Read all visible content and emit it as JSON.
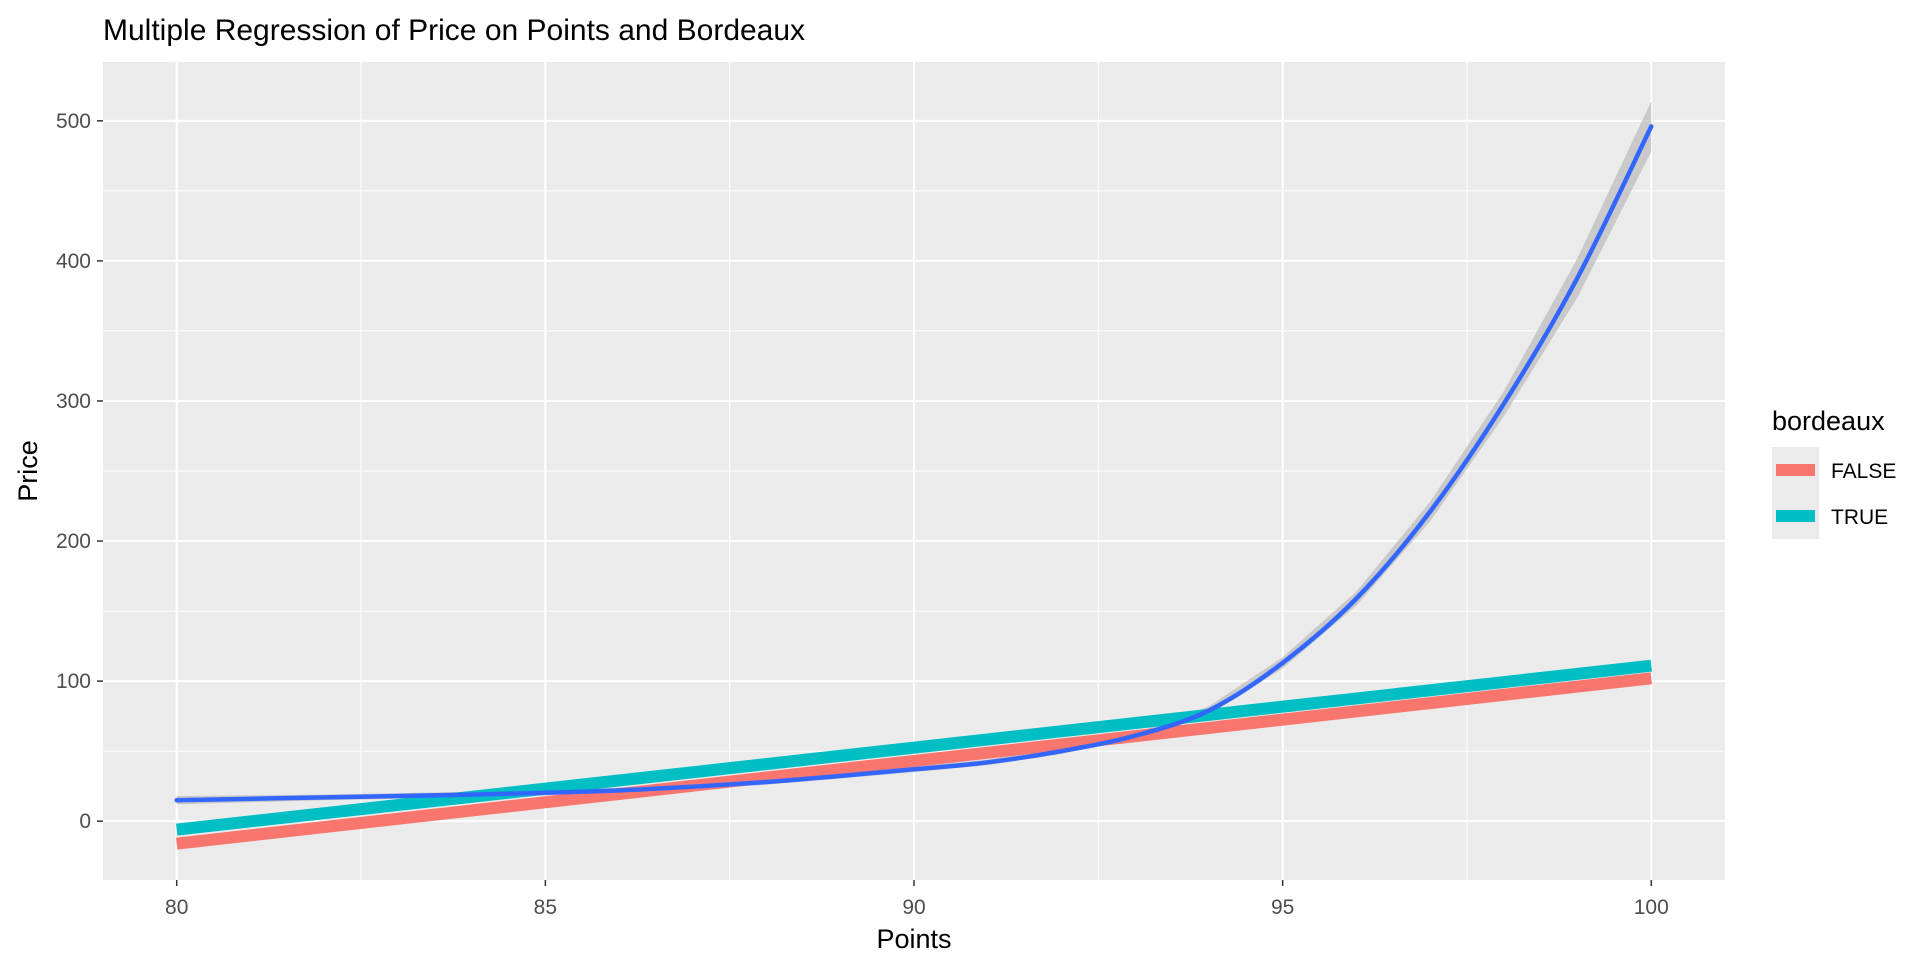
{
  "chart_data": {
    "type": "line",
    "title": "Multiple Regression of Price on Points and Bordeaux",
    "xlabel": "Points",
    "ylabel": "Price",
    "xlim": [
      79,
      101
    ],
    "ylim": [
      -42,
      542
    ],
    "x_ticks": [
      80,
      85,
      90,
      95,
      100
    ],
    "y_ticks": [
      0,
      100,
      200,
      300,
      400,
      500
    ],
    "grid": true,
    "legend": {
      "title": "bordeaux",
      "position": "right",
      "entries": [
        {
          "label": "FALSE",
          "color": "#F8766D"
        },
        {
          "label": "TRUE",
          "color": "#00BFC4"
        }
      ]
    },
    "series": [
      {
        "name": "FALSE",
        "color": "#F8766D",
        "x": [
          80,
          100
        ],
        "y": [
          -16,
          102
        ]
      },
      {
        "name": "TRUE",
        "color": "#00BFC4",
        "x": [
          80,
          100
        ],
        "y": [
          -6,
          111
        ]
      }
    ],
    "smooth": {
      "color": "#3366FF",
      "band_color": "#BDBDBD",
      "x": [
        80,
        82,
        84,
        86,
        88,
        90,
        91,
        92,
        93,
        94,
        95,
        96,
        97,
        98,
        99,
        100
      ],
      "y": [
        15,
        17,
        19,
        22,
        28,
        37,
        42,
        50,
        61,
        79,
        113,
        159,
        221,
        298,
        388,
        496
      ],
      "lower": [
        12,
        15,
        17,
        20,
        26,
        35,
        40,
        48,
        59,
        76,
        109,
        154,
        214,
        289,
        374,
        478
      ],
      "upper": [
        18,
        19,
        21,
        24,
        30,
        39,
        44,
        52,
        63,
        82,
        117,
        164,
        228,
        307,
        402,
        514
      ]
    }
  }
}
